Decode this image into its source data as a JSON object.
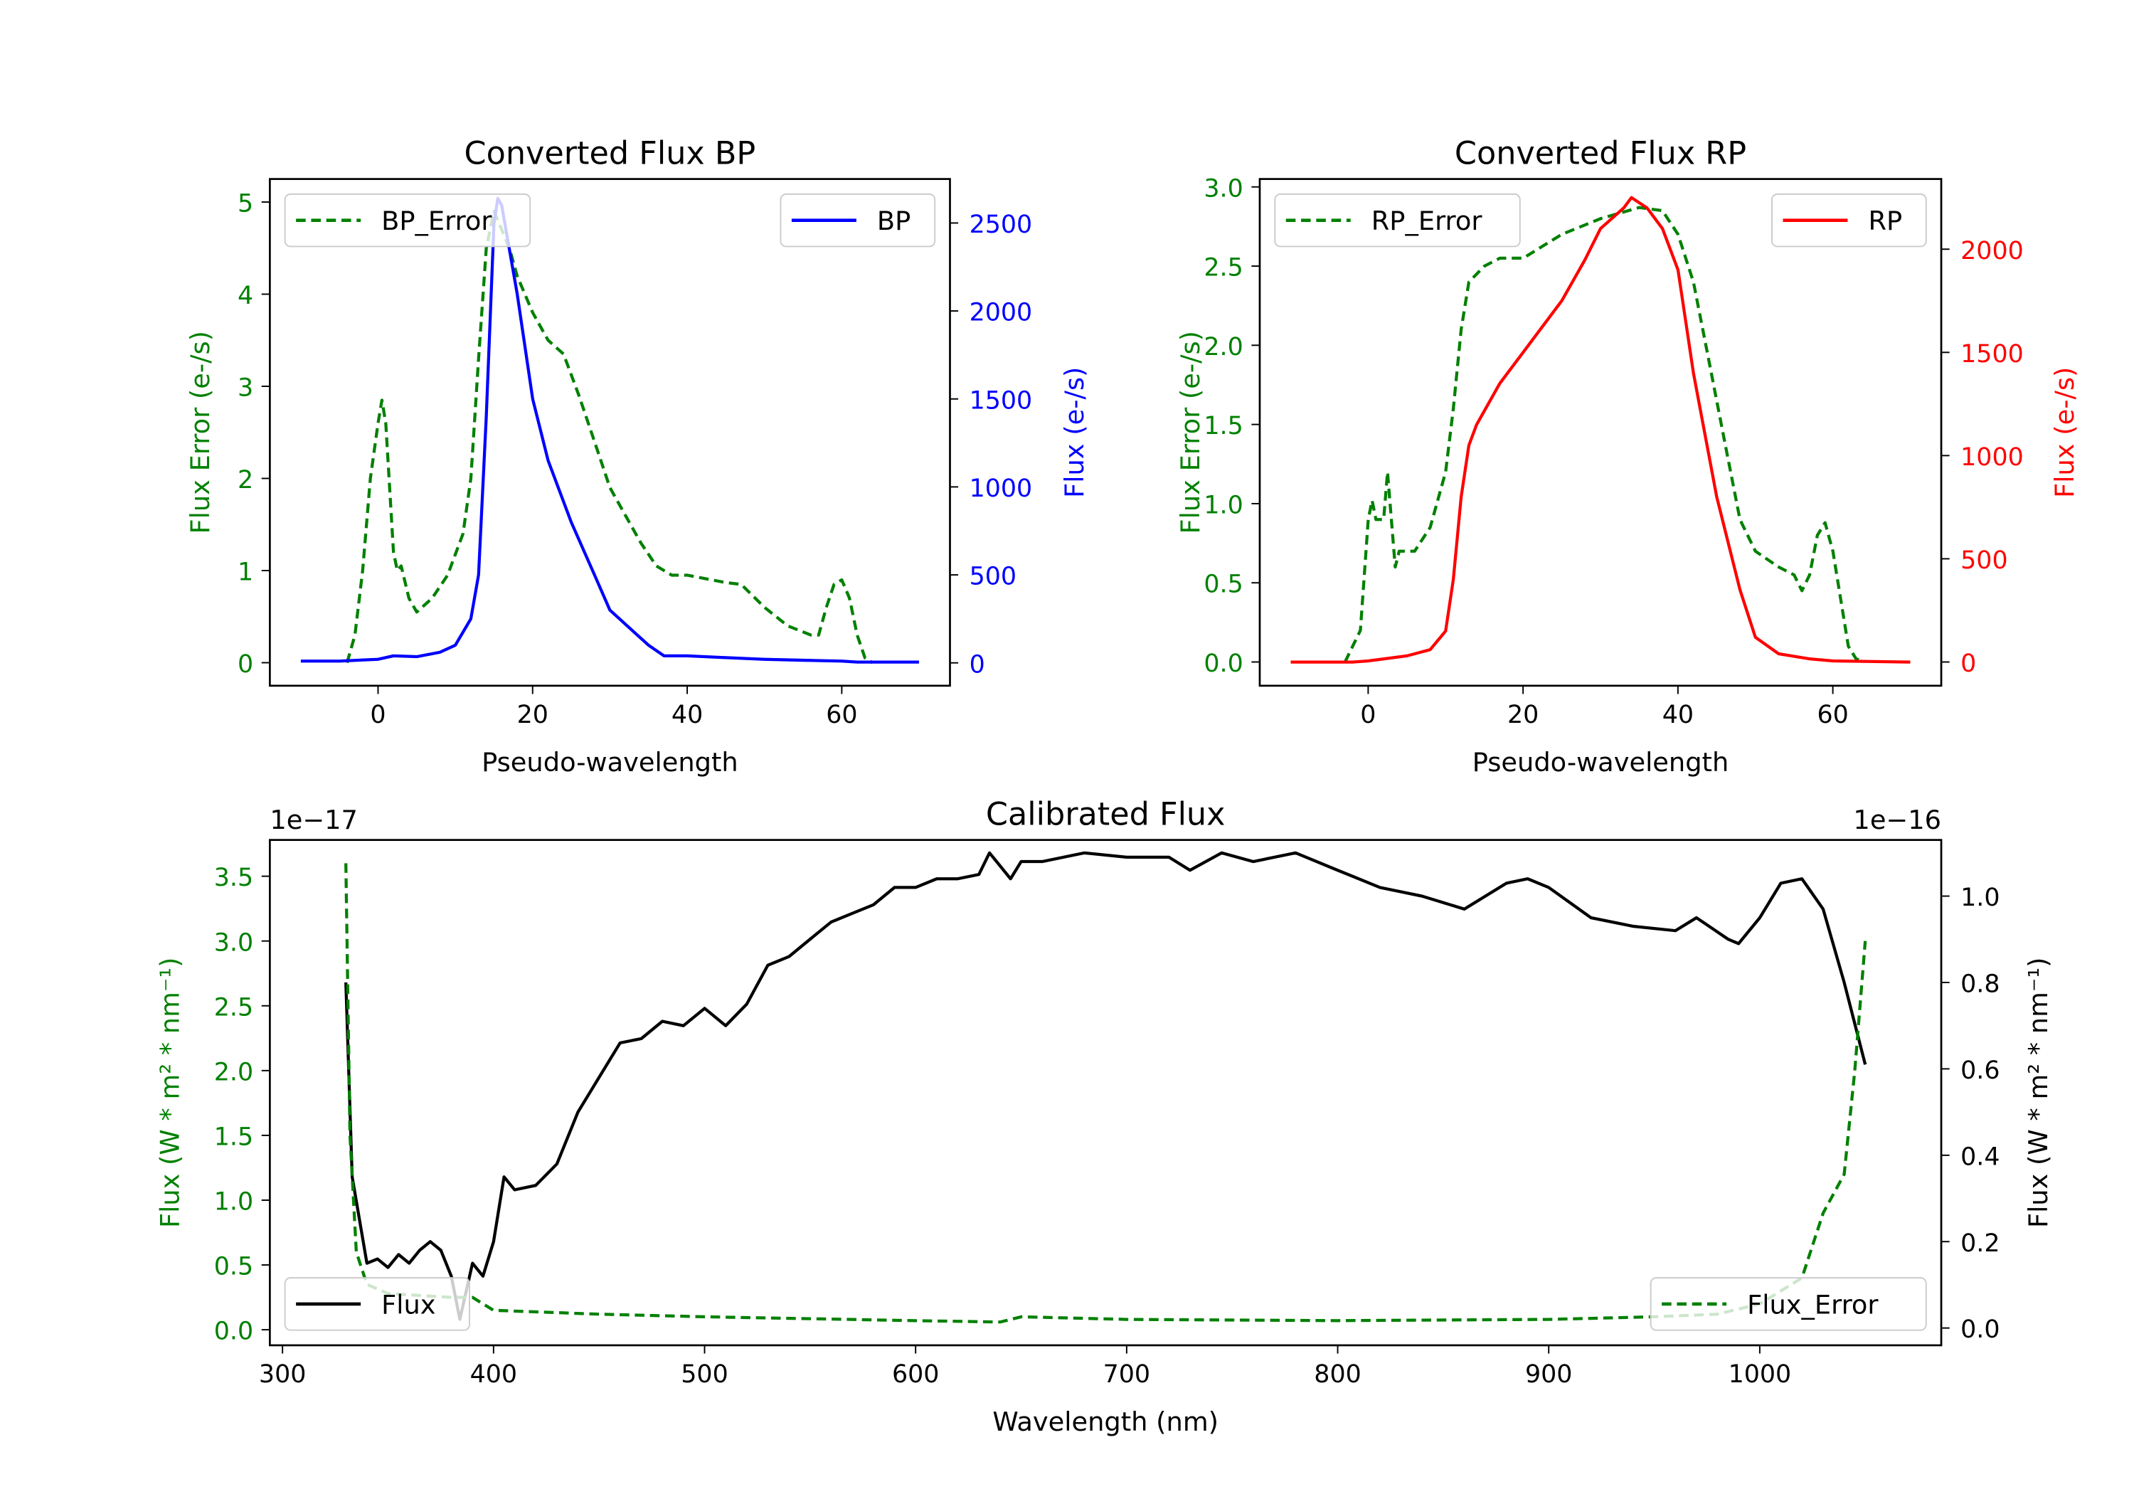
{
  "chart_data": [
    {
      "type": "line",
      "title": "Converted Flux BP",
      "xlabel": "Pseudo-wavelength",
      "ylabel_left": "Flux Error (e-/s)",
      "ylabel_right": "Flux (e-/s)",
      "xlim": [
        -14,
        74
      ],
      "ylim_left": [
        -0.25,
        5.25
      ],
      "ylim_right": [
        -130,
        2750
      ],
      "xticks": [
        0,
        20,
        40,
        60
      ],
      "yticks_left": [
        0,
        1,
        2,
        3,
        4,
        5
      ],
      "yticks_right": [
        0,
        500,
        1000,
        1500,
        2000,
        2500
      ],
      "colors": {
        "error": "#008000",
        "flux": "#0000ff"
      },
      "series": [
        {
          "name": "BP_Error",
          "axis": "left",
          "style": "dashed",
          "legend": "top-left",
          "x": [
            -4,
            -3,
            -2,
            -1,
            0,
            0.5,
            1,
            2,
            2.5,
            3,
            4,
            5,
            7,
            9,
            11,
            12,
            13,
            14,
            15,
            16,
            17,
            18,
            20,
            22,
            24,
            26,
            28,
            30,
            32,
            34,
            36,
            38,
            40,
            45,
            47,
            50,
            53,
            56,
            57,
            58,
            59,
            60,
            61,
            62,
            63,
            64
          ],
          "y": [
            0,
            0.3,
            1,
            2,
            2.6,
            2.85,
            2.6,
            1.2,
            1.0,
            1.05,
            0.7,
            0.55,
            0.7,
            0.95,
            1.4,
            2,
            3.3,
            4.5,
            4.9,
            4.7,
            4.5,
            4.2,
            3.8,
            3.5,
            3.35,
            2.9,
            2.4,
            1.9,
            1.6,
            1.3,
            1.05,
            0.95,
            0.95,
            0.87,
            0.85,
            0.6,
            0.4,
            0.3,
            0.3,
            0.6,
            0.85,
            0.9,
            0.7,
            0.3,
            0.05,
            0
          ]
        },
        {
          "name": "BP",
          "axis": "right",
          "style": "solid",
          "legend": "top-right",
          "x": [
            -10,
            -5,
            0,
            2,
            5,
            8,
            10,
            12,
            13,
            14,
            15,
            15.5,
            16,
            18,
            20,
            22,
            25,
            28,
            30,
            33,
            35,
            37,
            40,
            45,
            50,
            55,
            60,
            62,
            70
          ],
          "y": [
            10,
            10,
            20,
            40,
            35,
            60,
            100,
            250,
            500,
            1400,
            2500,
            2640,
            2600,
            2100,
            1500,
            1150,
            800,
            500,
            300,
            180,
            100,
            40,
            40,
            30,
            20,
            15,
            10,
            5,
            5
          ]
        }
      ]
    },
    {
      "type": "line",
      "title": "Converted Flux RP",
      "xlabel": "Pseudo-wavelength",
      "ylabel_left": "Flux Error (e-/s)",
      "ylabel_right": "Flux (e-/s)",
      "xlim": [
        -14,
        74
      ],
      "ylim_left": [
        -0.15,
        3.05
      ],
      "ylim_right": [
        -115,
        2340
      ],
      "xticks": [
        0,
        20,
        40,
        60
      ],
      "yticks_left": [
        "0.0",
        "0.5",
        "1.0",
        "1.5",
        "2.0",
        "2.5",
        "3.0"
      ],
      "yticks_right": [
        0,
        500,
        1000,
        1500,
        2000
      ],
      "colors": {
        "error": "#008000",
        "flux": "#ff0000"
      },
      "series": [
        {
          "name": "RP_Error",
          "axis": "left",
          "style": "dashed",
          "legend": "top-left",
          "x": [
            -3,
            -1,
            0,
            0.5,
            1,
            2,
            2.5,
            3,
            3.5,
            4,
            6,
            8,
            10,
            11,
            12,
            13,
            15,
            17,
            20,
            25,
            30,
            35,
            38,
            40,
            42,
            44,
            46,
            48,
            50,
            53,
            55,
            56,
            57,
            58,
            59,
            60,
            61,
            62,
            63,
            64
          ],
          "y": [
            0,
            0.2,
            0.9,
            1.02,
            0.9,
            0.9,
            1.2,
            0.9,
            0.6,
            0.7,
            0.7,
            0.85,
            1.2,
            1.6,
            2.1,
            2.4,
            2.5,
            2.55,
            2.55,
            2.7,
            2.8,
            2.87,
            2.85,
            2.7,
            2.4,
            1.9,
            1.4,
            0.9,
            0.7,
            0.6,
            0.55,
            0.45,
            0.55,
            0.8,
            0.88,
            0.7,
            0.4,
            0.1,
            0.02,
            0
          ]
        },
        {
          "name": "RP",
          "axis": "right",
          "style": "solid",
          "legend": "top-right",
          "x": [
            -10,
            -2,
            0,
            5,
            8,
            10,
            11,
            12,
            13,
            14,
            17,
            20,
            25,
            28,
            30,
            33,
            34,
            36,
            38,
            40,
            42,
            45,
            48,
            50,
            53,
            57,
            60,
            70
          ],
          "y": [
            0,
            0,
            5,
            30,
            60,
            150,
            400,
            800,
            1050,
            1150,
            1350,
            1500,
            1750,
            1950,
            2100,
            2200,
            2250,
            2200,
            2100,
            1900,
            1400,
            800,
            350,
            120,
            40,
            15,
            5,
            0
          ]
        }
      ]
    },
    {
      "type": "line",
      "title": "Calibrated Flux",
      "xlabel": "Wavelength (nm)",
      "ylabel_left": "Flux (W * m² * nm⁻¹)",
      "ylabel_right": "Flux (W * m² * nm⁻¹)",
      "offset_left": "1e−17",
      "offset_right": "1e−16",
      "xlim": [
        294,
        1086
      ],
      "ylim_left": [
        -0.12,
        3.78
      ],
      "ylim_right": [
        -0.04,
        1.13
      ],
      "xticks": [
        300,
        400,
        500,
        600,
        700,
        800,
        900,
        1000
      ],
      "yticks_left": [
        "0.0",
        "0.5",
        "1.0",
        "1.5",
        "2.0",
        "2.5",
        "3.0",
        "3.5"
      ],
      "yticks_right": [
        "0.0",
        "0.2",
        "0.4",
        "0.6",
        "0.8",
        "1.0"
      ],
      "colors": {
        "error": "#008000",
        "flux": "#000000"
      },
      "series": [
        {
          "name": "Flux",
          "axis": "right",
          "style": "solid",
          "legend": "bottom-left",
          "x": [
            330,
            333,
            340,
            345,
            350,
            355,
            360,
            365,
            370,
            375,
            380,
            384,
            390,
            395,
            400,
            405,
            410,
            420,
            430,
            440,
            450,
            460,
            470,
            480,
            490,
            500,
            510,
            520,
            530,
            540,
            550,
            560,
            570,
            580,
            590,
            600,
            610,
            620,
            630,
            635,
            645,
            650,
            660,
            680,
            700,
            720,
            730,
            745,
            760,
            780,
            800,
            820,
            840,
            860,
            880,
            890,
            900,
            920,
            940,
            960,
            970,
            985,
            990,
            1000,
            1010,
            1020,
            1030,
            1040,
            1050
          ],
          "y": [
            0.8,
            0.35,
            0.15,
            0.16,
            0.14,
            0.17,
            0.15,
            0.18,
            0.2,
            0.18,
            0.12,
            0.02,
            0.15,
            0.12,
            0.2,
            0.35,
            0.32,
            0.33,
            0.38,
            0.5,
            0.58,
            0.66,
            0.67,
            0.71,
            0.7,
            0.74,
            0.7,
            0.75,
            0.84,
            0.86,
            0.9,
            0.94,
            0.96,
            0.98,
            1.02,
            1.02,
            1.04,
            1.04,
            1.05,
            1.1,
            1.04,
            1.08,
            1.08,
            1.1,
            1.09,
            1.09,
            1.06,
            1.1,
            1.08,
            1.1,
            1.06,
            1.02,
            1.0,
            0.97,
            1.03,
            1.04,
            1.02,
            0.95,
            0.93,
            0.92,
            0.95,
            0.9,
            0.89,
            0.95,
            1.03,
            1.04,
            0.97,
            0.8,
            0.61
          ]
        },
        {
          "name": "Flux_Error",
          "axis": "left",
          "style": "dashed",
          "legend": "bottom-right",
          "x": [
            330,
            332,
            335,
            340,
            350,
            380,
            390,
            400,
            450,
            500,
            600,
            640,
            650,
            700,
            800,
            900,
            950,
            980,
            1000,
            1020,
            1030,
            1040,
            1045,
            1050
          ],
          "y": [
            3.6,
            1.5,
            0.6,
            0.35,
            0.28,
            0.25,
            0.25,
            0.15,
            0.12,
            0.1,
            0.07,
            0.06,
            0.1,
            0.08,
            0.07,
            0.08,
            0.1,
            0.12,
            0.2,
            0.4,
            0.9,
            1.2,
            2.0,
            3.0
          ]
        }
      ]
    }
  ]
}
